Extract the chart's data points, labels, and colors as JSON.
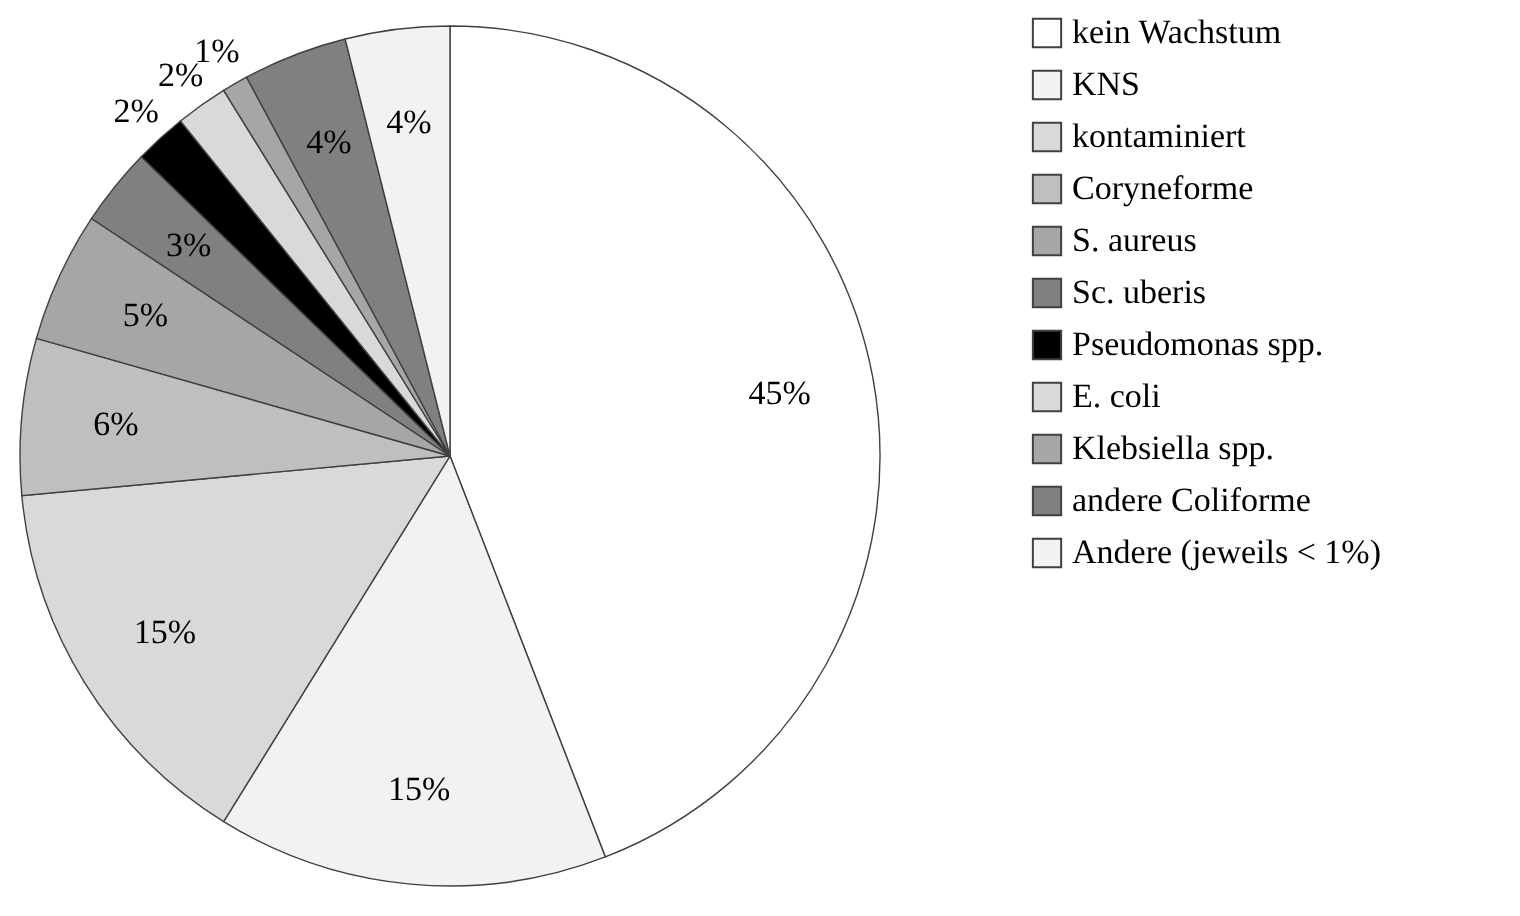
{
  "chart_data": {
    "type": "pie",
    "categories": [
      "kein Wachstum",
      "KNS",
      "kontaminiert",
      "Coryneforme",
      "S. aureus",
      "Sc. uberis",
      "Pseudomonas spp.",
      "E. coli",
      "Klebsiella spp.",
      "andere Coliforme",
      "Andere (jeweils < 1%)"
    ],
    "values": [
      45,
      15,
      15,
      6,
      5,
      3,
      2,
      2,
      1,
      4,
      4
    ],
    "value_labels": [
      "45%",
      "15%",
      "15%",
      "6%",
      "5%",
      "3%",
      "2%",
      "2%",
      "1%",
      "4%",
      "4%"
    ],
    "colors": [
      "#ffffff",
      "#f2f2f2",
      "#d9d9d9",
      "#bfbfbf",
      "#a6a6a6",
      "#808080",
      "#000000",
      "#d9d9d9",
      "#a6a6a6",
      "#808080",
      "#f2f2f2"
    ],
    "legend": "right"
  }
}
